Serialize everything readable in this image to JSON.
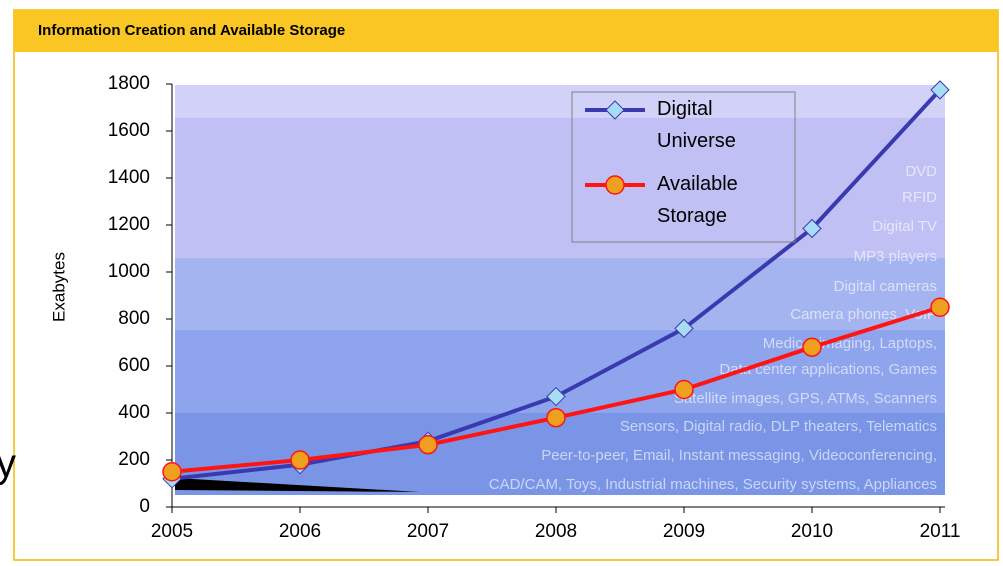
{
  "chart_data": {
    "type": "line",
    "title": "Information Creation and Available Storage",
    "ylabel": "Exabytes",
    "x": [
      2005,
      2006,
      2007,
      2008,
      2009,
      2010,
      2011
    ],
    "xlim": [
      2005,
      2011
    ],
    "xticks": [
      2005,
      2006,
      2007,
      2008,
      2009,
      2010,
      2011
    ],
    "ylim": [
      0,
      1800
    ],
    "yticks": [
      0,
      200,
      400,
      600,
      800,
      1000,
      1200,
      1400,
      1600,
      1800
    ],
    "series": [
      {
        "name": "Digital Universe",
        "color": "#3a3ab0",
        "marker_color": "#a8dcf4",
        "marker": "diamond",
        "values": [
          120,
          180,
          280,
          470,
          760,
          1185,
          1775
        ]
      },
      {
        "name": "Available Storage",
        "color": "#ff1414",
        "marker_color": "#f0a020",
        "marker": "circle",
        "values": [
          150,
          200,
          265,
          380,
          500,
          680,
          850
        ]
      }
    ],
    "annotations": [
      "DVD",
      "RFID",
      "Digital TV",
      "MP3 players",
      "Digital cameras",
      "Camera phones, VoIP",
      "Medical imaging, Laptops,",
      "Data center applications, Games",
      "Satellite images, GPS, ATMs, Scanners",
      "Sensors, Digital radio, DLP theaters, Telematics",
      "Peer-to-peer, Email, Instant messaging, Videoconferencing,",
      "CAD/CAM, Toys, Industrial machines, Security systems, Appliances"
    ],
    "fragment": "y"
  }
}
